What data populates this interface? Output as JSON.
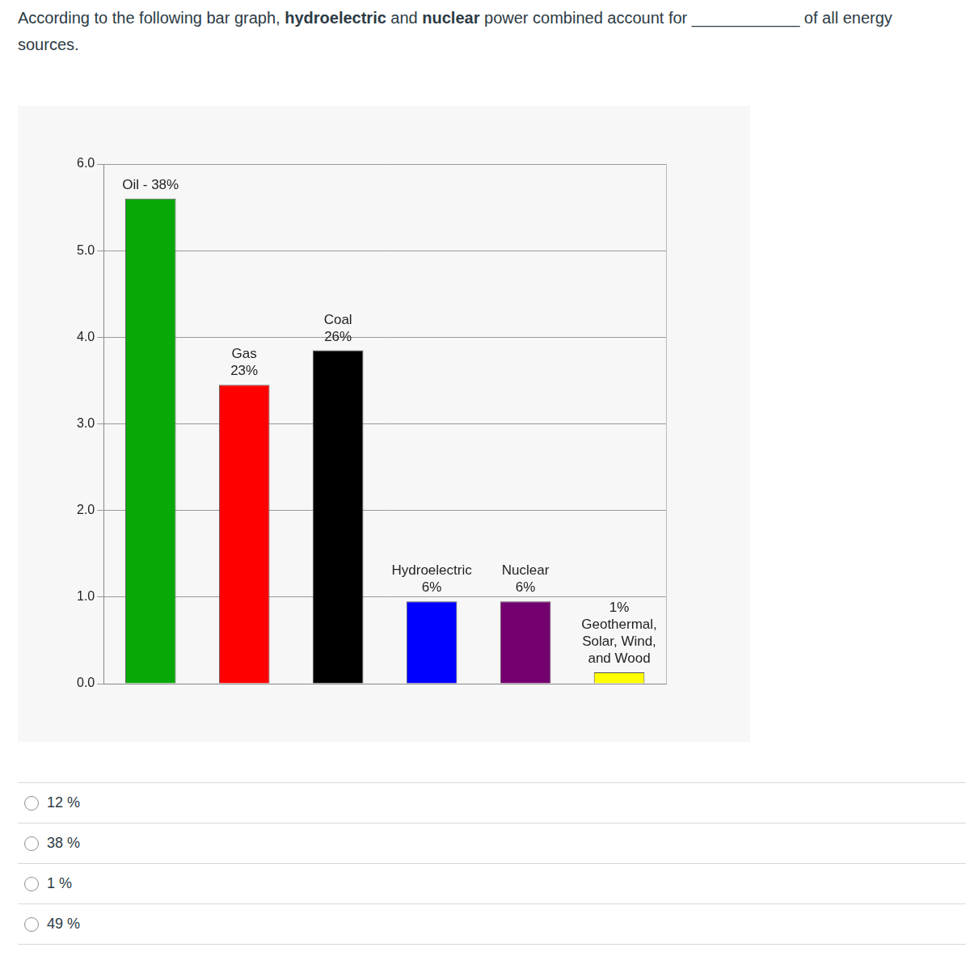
{
  "question": [
    {
      "text": "According to the following bar graph, ",
      "bold": false
    },
    {
      "text": "hydroelectric",
      "bold": true
    },
    {
      "text": " and ",
      "bold": false
    },
    {
      "text": "nuclear",
      "bold": true
    },
    {
      "text": " power combined account for ",
      "bold": false
    },
    {
      "text": "____________",
      "bold": false
    },
    {
      "text": " of all energy sources.",
      "bold": false
    }
  ],
  "chart_data": {
    "type": "bar",
    "categories": [
      [
        "Oil - 38%"
      ],
      [
        "Gas",
        "23%"
      ],
      [
        "Coal",
        "26%"
      ],
      [
        "Hydroelectric",
        "6%"
      ],
      [
        "Nuclear",
        "6%"
      ],
      [
        "1%",
        "Geothermal,",
        "Solar, Wind,",
        "and Wood"
      ]
    ],
    "values": [
      5.6,
      3.45,
      3.85,
      0.95,
      0.95,
      0.13
    ],
    "colors": [
      "#08a808",
      "#ff0000",
      "#000000",
      "#0000ff",
      "#73006e",
      "#ffff00"
    ],
    "ylim": [
      0,
      6
    ],
    "yticks": [
      {
        "value": 0,
        "label": "0.0"
      },
      {
        "value": 1,
        "label": "1.0"
      },
      {
        "value": 2,
        "label": "2.0"
      },
      {
        "value": 3,
        "label": "3.0"
      },
      {
        "value": 4,
        "label": "4.0"
      },
      {
        "value": 5,
        "label": "5.0"
      },
      {
        "value": 6,
        "label": "6.0"
      }
    ],
    "grid": true,
    "tick_labels": "y"
  },
  "options": [
    "12 %",
    "38 %",
    "1 %",
    "49 %"
  ]
}
